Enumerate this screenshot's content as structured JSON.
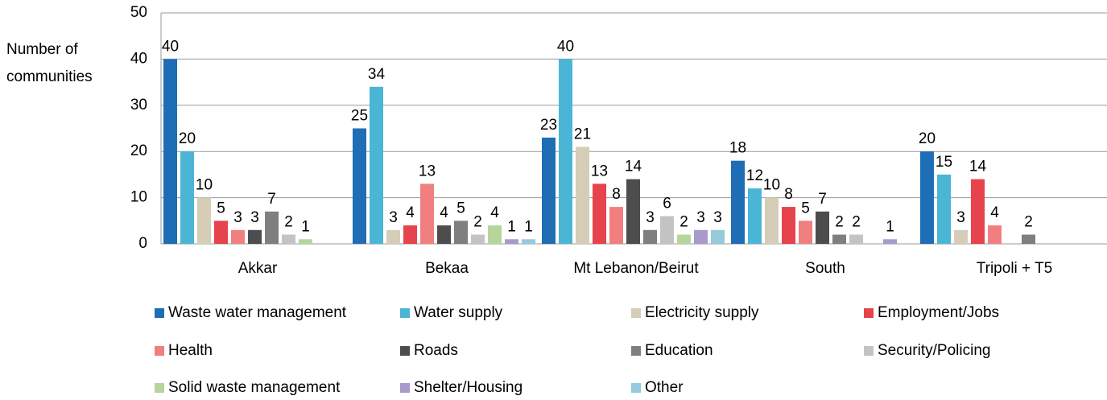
{
  "chart_data": {
    "type": "bar",
    "y_label": "Number of communities",
    "categories": [
      "Akkar",
      "Bekaa",
      "Mt Lebanon/Beirut",
      "South",
      "Tripoli + T5"
    ],
    "ylim": [
      0,
      50
    ],
    "yticks": [
      0,
      10,
      20,
      30,
      40,
      50
    ],
    "grid": true,
    "legend": "bottom",
    "series": [
      {
        "name": "Waste water management",
        "color": "#1f6db4",
        "values": [
          40,
          25,
          23,
          18,
          20
        ]
      },
      {
        "name": "Water supply",
        "color": "#4bb5d5",
        "values": [
          20,
          34,
          40,
          12,
          15
        ]
      },
      {
        "name": "Electricity supply",
        "color": "#d6cdb8",
        "values": [
          10,
          3,
          21,
          10,
          3
        ]
      },
      {
        "name": "Employment/Jobs",
        "color": "#e7434c",
        "values": [
          5,
          4,
          13,
          8,
          14
        ]
      },
      {
        "name": "Health",
        "color": "#f17f80",
        "values": [
          3,
          13,
          8,
          5,
          4
        ]
      },
      {
        "name": "Roads",
        "color": "#4d4d4d",
        "values": [
          3,
          4,
          14,
          7,
          null
        ]
      },
      {
        "name": "Education",
        "color": "#7f7f7f",
        "values": [
          7,
          5,
          3,
          2,
          2
        ]
      },
      {
        "name": "Security/Policing",
        "color": "#c3c3c3",
        "values": [
          2,
          2,
          6,
          2,
          null
        ]
      },
      {
        "name": "Solid waste management",
        "color": "#b6d59c",
        "values": [
          1,
          4,
          2,
          null,
          null
        ]
      },
      {
        "name": "Shelter/Housing",
        "color": "#a89bca",
        "values": [
          null,
          1,
          3,
          1,
          null
        ]
      },
      {
        "name": "Other",
        "color": "#94cada",
        "values": [
          null,
          1,
          3,
          null,
          null
        ]
      }
    ]
  }
}
